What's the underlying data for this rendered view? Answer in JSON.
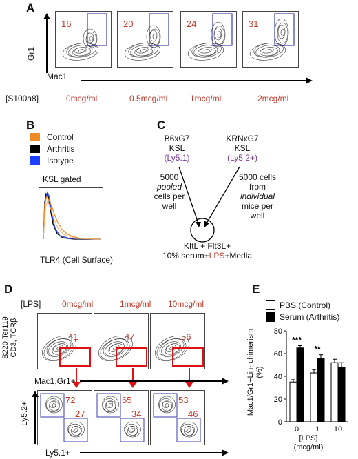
{
  "panel_a": {
    "letter": "A",
    "y_axis_label": "Gr1",
    "x_axis_label": "Mac1",
    "row_label": "[S100a8]",
    "plots": [
      {
        "percent": "16",
        "dose": "0mcg/ml"
      },
      {
        "percent": "20",
        "dose": "0.5mcg/ml"
      },
      {
        "percent": "24",
        "dose": "1mcg/ml"
      },
      {
        "percent": "31",
        "dose": "2mcg/ml"
      }
    ]
  },
  "panel_b": {
    "letter": "B",
    "legend": [
      {
        "label": "Control",
        "color": "#f08a24"
      },
      {
        "label": "Arthritis",
        "color": "#000000"
      },
      {
        "label": "Isotype",
        "color": "#1f3fff"
      }
    ],
    "title": "KSL gated",
    "x_axis_label": "TLR4 (Cell Surface)"
  },
  "panel_c": {
    "letter": "C",
    "donor_left": {
      "line1": "B6xG7",
      "line2": "KSL",
      "line3": "(Ly5.1)"
    },
    "donor_right": {
      "line1": "KRNxG7",
      "line2": "KSL",
      "line3": "(Ly5.2+)"
    },
    "left_text": [
      "5000",
      "pooled",
      "cells per",
      "well"
    ],
    "right_text": [
      "5000 cells",
      "from",
      "individual",
      "mice per",
      "well"
    ],
    "culture_line1": "KItL + Flt3L+",
    "culture_line2_pre": "10% serum+",
    "culture_line2_lps": "LPS",
    "culture_line2_post": "+Media"
  },
  "panel_d": {
    "letter": "D",
    "row_label": "[LPS]",
    "y_axis_label_top": [
      "B220,Ter119",
      "CD3, TCRβ"
    ],
    "x_axis_label_top": "Mac1,Gr1+",
    "y_axis_label_bottom": "Ly5.2+",
    "x_axis_label_bottom": "Ly5.1+",
    "columns": [
      {
        "dose": "0mcg/ml",
        "gate": "41",
        "ly52": "72",
        "ly51": "27"
      },
      {
        "dose": "1mcg/ml",
        "gate": "47",
        "ly52": "65",
        "ly51": "34"
      },
      {
        "dose": "10mcg/ml",
        "gate": "56",
        "ly52": "53",
        "ly51": "46"
      }
    ]
  },
  "panel_e": {
    "letter": "E",
    "chart_data": {
      "type": "bar",
      "categories": [
        "0",
        "1",
        "10"
      ],
      "series": [
        {
          "name": "PBS (Control)",
          "values": [
            35,
            43,
            52
          ],
          "errors": [
            2,
            3,
            3
          ],
          "color": "#ffffff"
        },
        {
          "name": "Serum (Arthritis)",
          "values": [
            65,
            56,
            48
          ],
          "errors": [
            2,
            3,
            4
          ],
          "color": "#000000"
        }
      ],
      "significance": [
        "***",
        "**",
        ""
      ],
      "ylabel": "Mac1/Gr1+Lin- chimerism (%)",
      "xlabel": "[LPS] (mcg/ml)",
      "yticks": [
        0,
        20,
        40,
        60,
        80
      ],
      "ylim": [
        0,
        80
      ]
    }
  }
}
